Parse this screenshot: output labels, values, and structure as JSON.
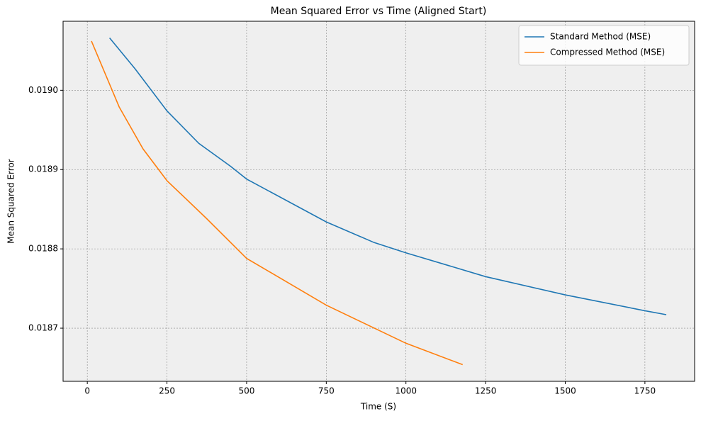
{
  "chart_data": {
    "type": "line",
    "title": "Mean Squared Error vs Time (Aligned Start)",
    "x_label": "Time (S)",
    "y_label": "Mean Squared Error",
    "xlim": [
      -76,
      1906
    ],
    "ylim": [
      0.018633,
      0.019087
    ],
    "xticks": [
      0,
      250,
      500,
      750,
      1000,
      1250,
      1500,
      1750
    ],
    "yticks": [
      {
        "value": 0.0187,
        "label": "0.0187"
      },
      {
        "value": 0.0188,
        "label": "0.0188"
      },
      {
        "value": 0.0189,
        "label": "0.0189"
      },
      {
        "value": 0.019,
        "label": "0.0190"
      }
    ],
    "grid": true,
    "legend": "upper right",
    "series": [
      {
        "name": "Standard Method (MSE)",
        "color": "#1f77b4",
        "x": [
          70,
          150,
          250,
          350,
          450,
          500,
          750,
          900,
          1000,
          1250,
          1500,
          1750,
          1817
        ],
        "values": [
          0.019066,
          0.019027,
          0.018974,
          0.018933,
          0.018904,
          0.018888,
          0.018834,
          0.018808,
          0.018795,
          0.018765,
          0.018742,
          0.018722,
          0.018717
        ]
      },
      {
        "name": "Compressed Method (MSE)",
        "color": "#ff7f0e",
        "x": [
          13,
          100,
          175,
          250,
          375,
          500,
          750,
          1000,
          1178
        ],
        "values": [
          0.019062,
          0.018979,
          0.018926,
          0.018886,
          0.018838,
          0.018788,
          0.018729,
          0.018681,
          0.018654
        ]
      }
    ]
  }
}
